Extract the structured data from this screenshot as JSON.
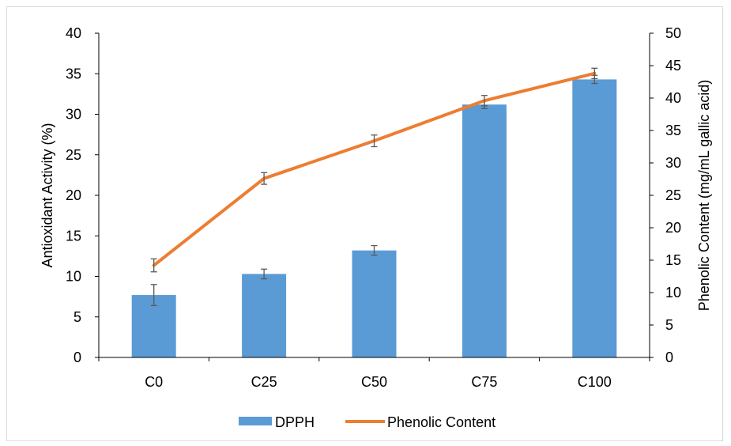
{
  "chart_data": {
    "type": "bar",
    "categories": [
      "C0",
      "C25",
      "C50",
      "C75",
      "C100"
    ],
    "left_axis": {
      "label": "Antioxidant Activity (%)",
      "ylim": [
        0,
        40
      ],
      "ticks": [
        0,
        5,
        10,
        15,
        20,
        25,
        30,
        35,
        40
      ]
    },
    "right_axis": {
      "label": "Phenolic Content (mg/mL gallic acid)",
      "ylim": [
        0,
        50
      ],
      "ticks": [
        0,
        5,
        10,
        15,
        20,
        25,
        30,
        35,
        40,
        45,
        50
      ]
    },
    "series": [
      {
        "name": "DPPH",
        "kind": "bar",
        "axis": "left",
        "color": "#5b9bd5",
        "values": [
          7.7,
          10.3,
          13.2,
          31.2,
          34.3
        ],
        "errors": [
          1.3,
          0.6,
          0.6,
          0.5,
          0.5
        ]
      },
      {
        "name": "Phenolic Content",
        "kind": "line",
        "axis": "right",
        "color": "#ed7d31",
        "values": [
          14.2,
          27.6,
          33.4,
          39.6,
          43.8
        ],
        "errors": [
          1.0,
          0.9,
          0.9,
          0.8,
          0.8
        ]
      }
    ],
    "grid": false,
    "legend_position": "bottom"
  }
}
